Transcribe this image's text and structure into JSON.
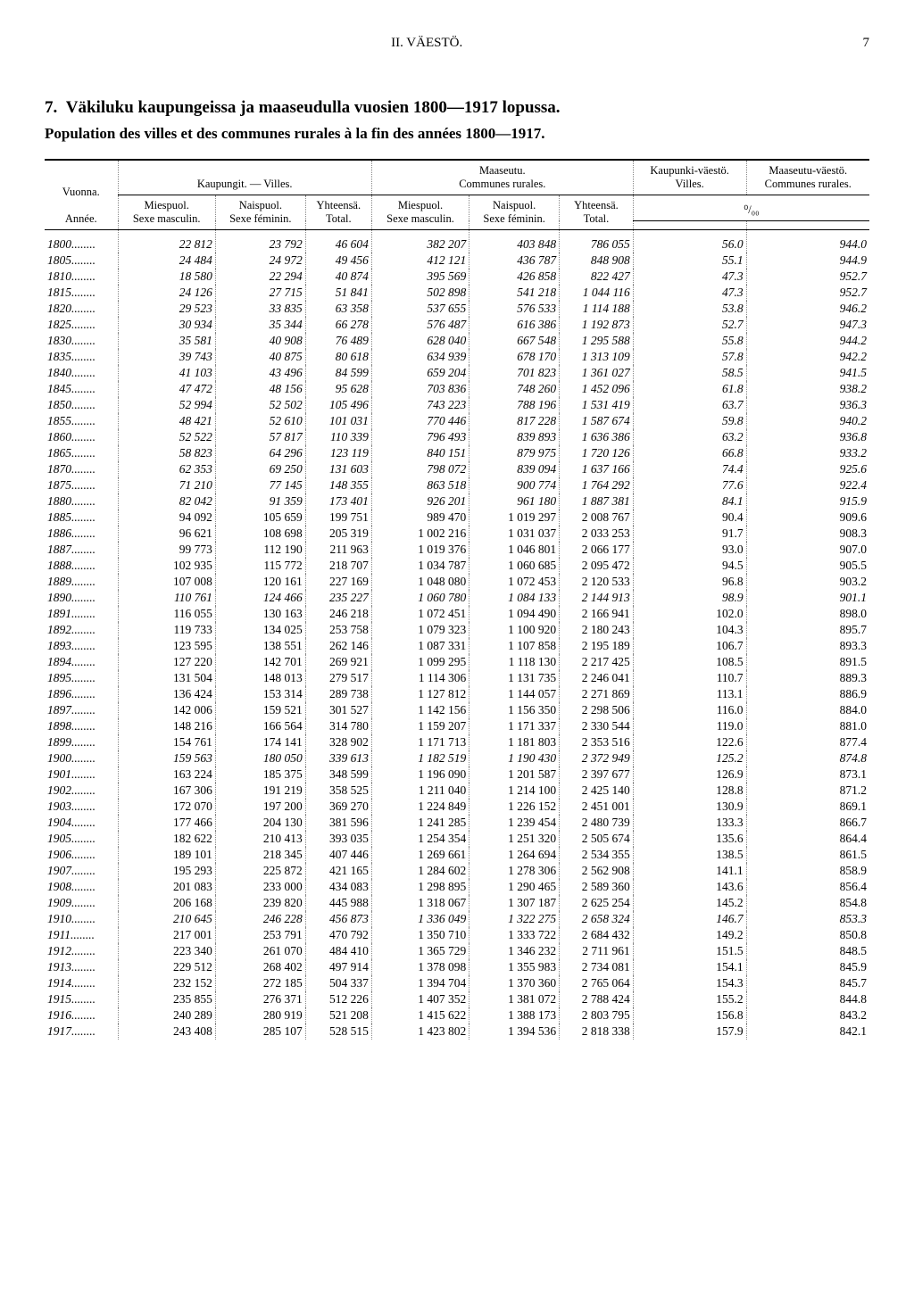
{
  "header": {
    "section": "II.  VÄESTÖ.",
    "page": "7"
  },
  "title_no": "7.",
  "title": "Väkiluku kaupungeissa ja maaseudulla vuosien 1800—1917 lopussa.",
  "subtitle": "Population des villes et des communes rurales à la fin des années 1800—1917.",
  "columns": {
    "year": "Vuonna.",
    "year2": "Année.",
    "cities": "Kaupungit. — Villes.",
    "rural": "Maaseutu.",
    "rural2": "Communes rurales.",
    "male": "Miespuol.",
    "male2": "Sexe masculin.",
    "female": "Naispuol.",
    "female2": "Sexe féminin.",
    "total": "Yhteensä.",
    "total2": "Total.",
    "urbanpop": "Kaupunki-väestö.",
    "urbanpop2": "Villes.",
    "ruralpop": "Maaseutu-väestö.",
    "ruralpop2": "Communes rurales.",
    "pct": "⁰/₀₀"
  },
  "rows": [
    [
      "1800",
      "22 812",
      "23 792",
      "46 604",
      "382 207",
      "403 848",
      "786 055",
      "56.0",
      "944.0"
    ],
    [
      "1805",
      "24 484",
      "24 972",
      "49 456",
      "412 121",
      "436 787",
      "848 908",
      "55.1",
      "944.9"
    ],
    [
      "1810",
      "18 580",
      "22 294",
      "40 874",
      "395 569",
      "426 858",
      "822 427",
      "47.3",
      "952.7"
    ],
    [
      "1815",
      "24 126",
      "27 715",
      "51 841",
      "502 898",
      "541 218",
      "1 044 116",
      "47.3",
      "952.7"
    ],
    [
      "1820",
      "29 523",
      "33 835",
      "63 358",
      "537 655",
      "576 533",
      "1 114 188",
      "53.8",
      "946.2"
    ],
    [
      "1825",
      "30 934",
      "35 344",
      "66 278",
      "576 487",
      "616 386",
      "1 192 873",
      "52.7",
      "947.3"
    ],
    [
      "1830",
      "35 581",
      "40 908",
      "76 489",
      "628 040",
      "667 548",
      "1 295 588",
      "55.8",
      "944.2"
    ],
    [
      "1835",
      "39 743",
      "40 875",
      "80 618",
      "634 939",
      "678 170",
      "1 313 109",
      "57.8",
      "942.2"
    ],
    [
      "1840",
      "41 103",
      "43 496",
      "84 599",
      "659 204",
      "701 823",
      "1 361 027",
      "58.5",
      "941.5"
    ],
    [
      "1845",
      "47 472",
      "48 156",
      "95 628",
      "703 836",
      "748 260",
      "1 452 096",
      "61.8",
      "938.2"
    ],
    [
      "1850",
      "52 994",
      "52 502",
      "105 496",
      "743 223",
      "788 196",
      "1 531 419",
      "63.7",
      "936.3"
    ],
    [
      "1855",
      "48 421",
      "52 610",
      "101 031",
      "770 446",
      "817 228",
      "1 587 674",
      "59.8",
      "940.2"
    ],
    [
      "1860",
      "52 522",
      "57 817",
      "110 339",
      "796 493",
      "839 893",
      "1 636 386",
      "63.2",
      "936.8"
    ],
    [
      "1865",
      "58 823",
      "64 296",
      "123 119",
      "840 151",
      "879 975",
      "1 720 126",
      "66.8",
      "933.2"
    ],
    [
      "1870",
      "62 353",
      "69 250",
      "131 603",
      "798 072",
      "839 094",
      "1 637 166",
      "74.4",
      "925.6"
    ],
    [
      "1875",
      "71 210",
      "77 145",
      "148 355",
      "863 518",
      "900 774",
      "1 764 292",
      "77.6",
      "922.4"
    ],
    [
      "1880",
      "82 042",
      "91 359",
      "173 401",
      "926 201",
      "961 180",
      "1 887 381",
      "84.1",
      "915.9"
    ],
    [
      "1885",
      "94 092",
      "105 659",
      "199 751",
      "989 470",
      "1 019 297",
      "2 008 767",
      "90.4",
      "909.6"
    ],
    [
      "1886",
      "96 621",
      "108 698",
      "205 319",
      "1 002 216",
      "1 031 037",
      "2 033 253",
      "91.7",
      "908.3"
    ],
    [
      "1887",
      "99 773",
      "112 190",
      "211 963",
      "1 019 376",
      "1 046 801",
      "2 066 177",
      "93.0",
      "907.0"
    ],
    [
      "1888",
      "102 935",
      "115 772",
      "218 707",
      "1 034 787",
      "1 060 685",
      "2 095 472",
      "94.5",
      "905.5"
    ],
    [
      "1889",
      "107 008",
      "120 161",
      "227 169",
      "1 048 080",
      "1 072 453",
      "2 120 533",
      "96.8",
      "903.2"
    ],
    [
      "1890",
      "110 761",
      "124 466",
      "235 227",
      "1 060 780",
      "1 084 133",
      "2 144 913",
      "98.9",
      "901.1"
    ],
    [
      "1891",
      "116 055",
      "130 163",
      "246 218",
      "1 072 451",
      "1 094 490",
      "2 166 941",
      "102.0",
      "898.0"
    ],
    [
      "1892",
      "119 733",
      "134 025",
      "253 758",
      "1 079 323",
      "1 100 920",
      "2 180 243",
      "104.3",
      "895.7"
    ],
    [
      "1893",
      "123 595",
      "138 551",
      "262 146",
      "1 087 331",
      "1 107 858",
      "2 195 189",
      "106.7",
      "893.3"
    ],
    [
      "1894",
      "127 220",
      "142 701",
      "269 921",
      "1 099 295",
      "1 118 130",
      "2 217 425",
      "108.5",
      "891.5"
    ],
    [
      "1895",
      "131 504",
      "148 013",
      "279 517",
      "1 114 306",
      "1 131 735",
      "2 246 041",
      "110.7",
      "889.3"
    ],
    [
      "1896",
      "136 424",
      "153 314",
      "289 738",
      "1 127 812",
      "1 144 057",
      "2 271 869",
      "113.1",
      "886.9"
    ],
    [
      "1897",
      "142 006",
      "159 521",
      "301 527",
      "1 142 156",
      "1 156 350",
      "2 298 506",
      "116.0",
      "884.0"
    ],
    [
      "1898",
      "148 216",
      "166 564",
      "314 780",
      "1 159 207",
      "1 171 337",
      "2 330 544",
      "119.0",
      "881.0"
    ],
    [
      "1899",
      "154 761",
      "174 141",
      "328 902",
      "1 171 713",
      "1 181 803",
      "2 353 516",
      "122.6",
      "877.4"
    ],
    [
      "1900",
      "159 563",
      "180 050",
      "339 613",
      "1 182 519",
      "1 190 430",
      "2 372 949",
      "125.2",
      "874.8"
    ],
    [
      "1901",
      "163 224",
      "185 375",
      "348 599",
      "1 196 090",
      "1 201 587",
      "2 397 677",
      "126.9",
      "873.1"
    ],
    [
      "1902",
      "167 306",
      "191 219",
      "358 525",
      "1 211 040",
      "1 214 100",
      "2 425 140",
      "128.8",
      "871.2"
    ],
    [
      "1903",
      "172 070",
      "197 200",
      "369 270",
      "1 224 849",
      "1 226 152",
      "2 451 001",
      "130.9",
      "869.1"
    ],
    [
      "1904",
      "177 466",
      "204 130",
      "381 596",
      "1 241 285",
      "1 239 454",
      "2 480 739",
      "133.3",
      "866.7"
    ],
    [
      "1905",
      "182 622",
      "210 413",
      "393 035",
      "1 254 354",
      "1 251 320",
      "2 505 674",
      "135.6",
      "864.4"
    ],
    [
      "1906",
      "189 101",
      "218 345",
      "407 446",
      "1 269 661",
      "1 264 694",
      "2 534 355",
      "138.5",
      "861.5"
    ],
    [
      "1907",
      "195 293",
      "225 872",
      "421 165",
      "1 284 602",
      "1 278 306",
      "2 562 908",
      "141.1",
      "858.9"
    ],
    [
      "1908",
      "201 083",
      "233 000",
      "434 083",
      "1 298 895",
      "1 290 465",
      "2 589 360",
      "143.6",
      "856.4"
    ],
    [
      "1909",
      "206 168",
      "239 820",
      "445 988",
      "1 318 067",
      "1 307 187",
      "2 625 254",
      "145.2",
      "854.8"
    ],
    [
      "1910",
      "210 645",
      "246 228",
      "456 873",
      "1 336 049",
      "1 322 275",
      "2 658 324",
      "146.7",
      "853.3"
    ],
    [
      "1911",
      "217 001",
      "253 791",
      "470 792",
      "1 350 710",
      "1 333 722",
      "2 684 432",
      "149.2",
      "850.8"
    ],
    [
      "1912",
      "223 340",
      "261 070",
      "484 410",
      "1 365 729",
      "1 346 232",
      "2 711 961",
      "151.5",
      "848.5"
    ],
    [
      "1913",
      "229 512",
      "268 402",
      "497 914",
      "1 378 098",
      "1 355 983",
      "2 734 081",
      "154.1",
      "845.9"
    ],
    [
      "1914",
      "232 152",
      "272 185",
      "504 337",
      "1 394 704",
      "1 370 360",
      "2 765 064",
      "154.3",
      "845.7"
    ],
    [
      "1915",
      "235 855",
      "276 371",
      "512 226",
      "1 407 352",
      "1 381 072",
      "2 788 424",
      "155.2",
      "844.8"
    ],
    [
      "1916",
      "240 289",
      "280 919",
      "521 208",
      "1 415 622",
      "1 388 173",
      "2 803 795",
      "156.8",
      "843.2"
    ],
    [
      "1917",
      "243 408",
      "285 107",
      "528 515",
      "1 423 802",
      "1 394 536",
      "2 818 338",
      "157.9",
      "842.1"
    ]
  ],
  "italic_years": [
    "1800",
    "1805",
    "1810",
    "1815",
    "1820",
    "1825",
    "1830",
    "1835",
    "1840",
    "1845",
    "1850",
    "1855",
    "1860",
    "1865",
    "1870",
    "1875",
    "1880",
    "1890",
    "1900",
    "1910"
  ]
}
